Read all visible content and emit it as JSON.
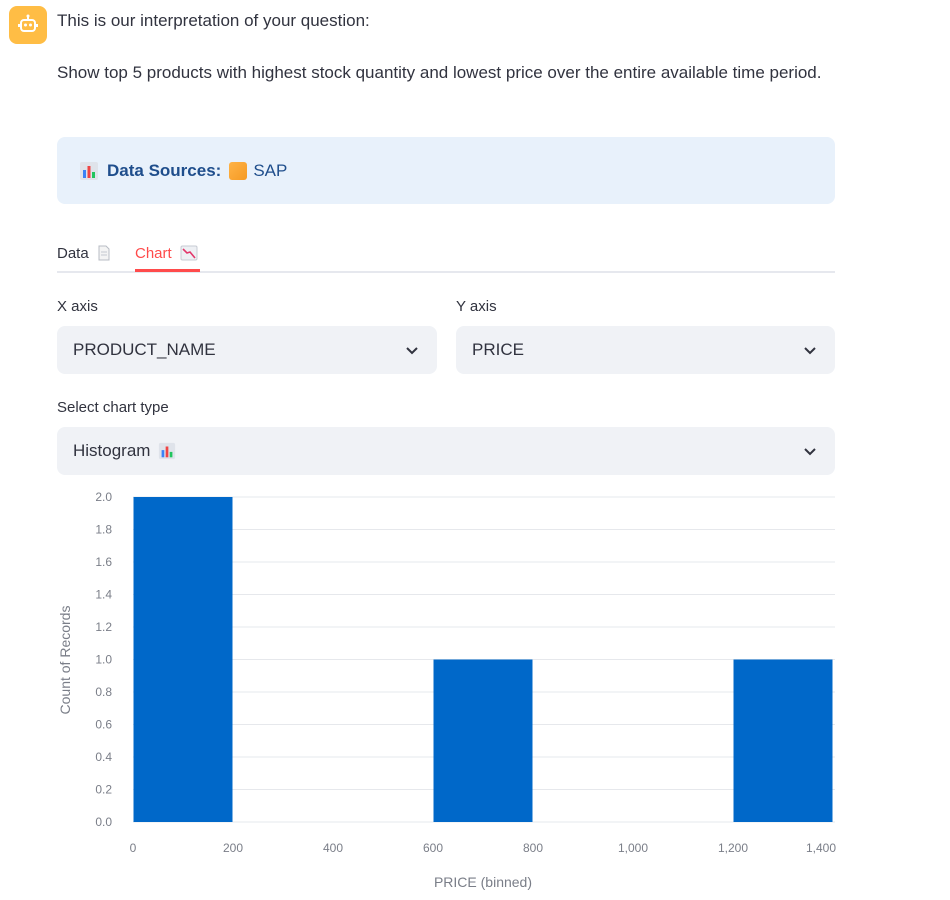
{
  "message": {
    "intro": "This is our interpretation of your question:",
    "question": "Show top 5 products with highest stock quantity and lowest price over the entire available time period."
  },
  "sources": {
    "label": "Data Sources:",
    "value": "SAP",
    "icon": "bar-chart-icon"
  },
  "tabs": [
    {
      "label": "Data",
      "icon": "document-icon",
      "active": false
    },
    {
      "label": "Chart",
      "icon": "chart-decreasing-icon",
      "active": true
    }
  ],
  "controls": {
    "x_axis_label": "X axis",
    "x_axis_value": "PRODUCT_NAME",
    "y_axis_label": "Y axis",
    "y_axis_value": "PRICE",
    "chart_type_label": "Select chart type",
    "chart_type_value": "Histogram"
  },
  "colors": {
    "accent": "#ff4b4b",
    "bar": "#0068c9",
    "info_bg": "#e8f1fb",
    "select_bg": "#f0f2f6",
    "avatar": "#ffbd45"
  },
  "chart_data": {
    "type": "bar",
    "title": "",
    "xlabel": "PRICE (binned)",
    "ylabel": "Count of Records",
    "bins": [
      {
        "start": 0,
        "end": 200,
        "count": 2
      },
      {
        "start": 600,
        "end": 800,
        "count": 1
      },
      {
        "start": 1200,
        "end": 1400,
        "count": 1
      }
    ],
    "xlim": [
      0,
      1400
    ],
    "ylim": [
      0,
      2.0
    ],
    "x_ticks": [
      "0",
      "200",
      "400",
      "600",
      "800",
      "1,000",
      "1,200",
      "1,400"
    ],
    "y_ticks": [
      "0.0",
      "0.2",
      "0.4",
      "0.6",
      "0.8",
      "1.0",
      "1.2",
      "1.4",
      "1.6",
      "1.8",
      "2.0"
    ],
    "grid": true
  }
}
